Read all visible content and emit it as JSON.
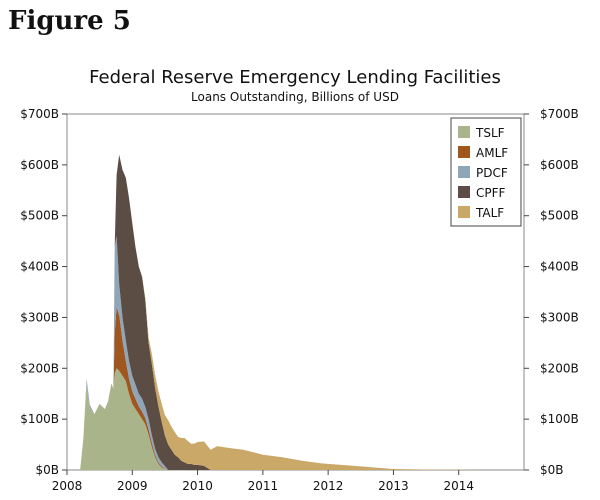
{
  "figure_label": "Figure 5",
  "chart_data": {
    "type": "area",
    "title": "Federal Reserve Emergency Lending Facilities",
    "subtitle": "Loans Outstanding, Billions of USD",
    "xlabel": "",
    "ylabel": "",
    "xlim": [
      2008.0,
      2015.0
    ],
    "ylim": [
      0,
      700
    ],
    "x_ticks": [
      "2008",
      "2009",
      "2010",
      "2011",
      "2012",
      "2013",
      "2014"
    ],
    "x_tick_values": [
      2008,
      2009,
      2010,
      2011,
      2012,
      2013,
      2014
    ],
    "y_ticks": [
      "$0B",
      "$100B",
      "$200B",
      "$300B",
      "$400B",
      "$500B",
      "$600B",
      "$700B"
    ],
    "y_tick_values": [
      0,
      100,
      200,
      300,
      400,
      500,
      600,
      700
    ],
    "grid": false,
    "legend_position": "top-right",
    "stacked": true,
    "x": [
      2008.2,
      2008.25,
      2008.3,
      2008.35,
      2008.42,
      2008.5,
      2008.58,
      2008.63,
      2008.68,
      2008.71,
      2008.73,
      2008.76,
      2008.8,
      2008.85,
      2008.9,
      2008.95,
      2009.0,
      2009.05,
      2009.1,
      2009.15,
      2009.2,
      2009.25,
      2009.3,
      2009.35,
      2009.4,
      2009.45,
      2009.5,
      2009.55,
      2009.6,
      2009.65,
      2009.7,
      2009.75,
      2009.8,
      2009.85,
      2009.9,
      2009.95,
      2010.0,
      2010.1,
      2010.2,
      2010.3,
      2010.5,
      2010.7,
      2011.0,
      2011.3,
      2011.6,
      2011.9,
      2012.2,
      2012.5,
      2012.8,
      2013.0,
      2013.5,
      2014.0,
      2014.5
    ],
    "series": [
      {
        "name": "TSLF",
        "color": "#a9b48a",
        "values": [
          0,
          60,
          170,
          120,
          110,
          130,
          120,
          135,
          170,
          160,
          190,
          200,
          195,
          185,
          175,
          150,
          130,
          120,
          110,
          100,
          90,
          70,
          45,
          25,
          12,
          5,
          2,
          0,
          0,
          0,
          0,
          0,
          0,
          0,
          0,
          0,
          0,
          0,
          0,
          0,
          0,
          0,
          0,
          0,
          0,
          0,
          0,
          0,
          0,
          0,
          0,
          0,
          0
        ]
      },
      {
        "name": "AMLF",
        "color": "#a0561f",
        "values": [
          0,
          0,
          0,
          0,
          0,
          0,
          0,
          0,
          0,
          0,
          80,
          120,
          110,
          70,
          40,
          30,
          25,
          20,
          15,
          15,
          12,
          10,
          8,
          5,
          3,
          2,
          1,
          0,
          0,
          0,
          0,
          0,
          0,
          0,
          0,
          0,
          0,
          0,
          0,
          0,
          0,
          0,
          0,
          0,
          0,
          0,
          0,
          0,
          0,
          0,
          0,
          0,
          0
        ]
      },
      {
        "name": "PDCF",
        "color": "#8fa5b8",
        "values": [
          0,
          0,
          10,
          8,
          0,
          0,
          0,
          0,
          0,
          0,
          170,
          140,
          60,
          45,
          40,
          35,
          30,
          28,
          25,
          25,
          22,
          20,
          15,
          12,
          10,
          8,
          5,
          0,
          0,
          0,
          0,
          0,
          0,
          0,
          0,
          0,
          0,
          0,
          0,
          0,
          0,
          0,
          0,
          0,
          0,
          0,
          0,
          0,
          0,
          0,
          0,
          0,
          0
        ]
      },
      {
        "name": "CPFF",
        "color": "#5b4d43",
        "values": [
          0,
          0,
          0,
          0,
          0,
          0,
          0,
          0,
          0,
          0,
          0,
          120,
          255,
          290,
          320,
          320,
          300,
          270,
          250,
          240,
          210,
          150,
          140,
          120,
          100,
          80,
          60,
          50,
          40,
          30,
          25,
          18,
          15,
          12,
          12,
          10,
          10,
          8,
          0,
          0,
          0,
          0,
          0,
          0,
          0,
          0,
          0,
          0,
          0,
          0,
          0,
          0,
          0
        ]
      },
      {
        "name": "TALF",
        "color": "#c9a868",
        "values": [
          0,
          0,
          0,
          0,
          0,
          0,
          0,
          0,
          0,
          0,
          0,
          0,
          0,
          0,
          0,
          0,
          0,
          0,
          0,
          0,
          5,
          10,
          20,
          25,
          30,
          35,
          40,
          48,
          45,
          45,
          40,
          45,
          48,
          45,
          40,
          42,
          45,
          48,
          40,
          47,
          43,
          40,
          30,
          25,
          18,
          13,
          10,
          7,
          4,
          2,
          1,
          0.5,
          0
        ]
      }
    ]
  }
}
